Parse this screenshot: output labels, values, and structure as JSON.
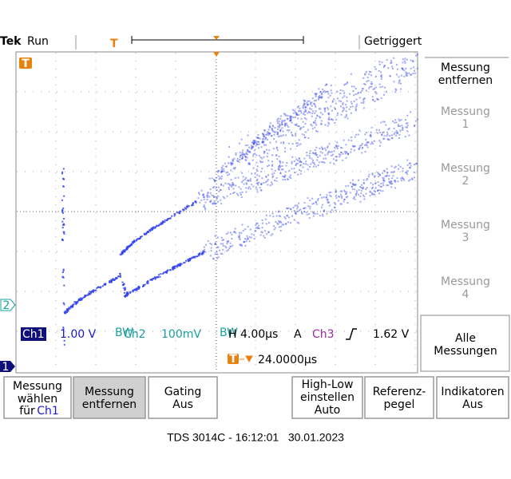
{
  "header": {
    "brand": "Tek",
    "state": "Run",
    "trigger_marker": "T",
    "trigger_status": "Getriggert"
  },
  "markers": {
    "trigger": "T",
    "ch2": "2",
    "ch1": "1"
  },
  "status": {
    "ch1": "Ch1",
    "ch1_scale": "1.00 V",
    "ch2": "Ch2",
    "ch2_scale": "100mV",
    "horizontal": "H 4.00µs",
    "mode": "A",
    "ch3": "Ch3",
    "trigger_level": "1.62 V",
    "delay_marker": "T",
    "delay": "24.0000µs"
  },
  "side_menu": [
    [
      "Messung",
      "entfernen"
    ],
    [
      "Messung",
      "1"
    ],
    [
      "Messung",
      "2"
    ],
    [
      "Messung",
      "3"
    ],
    [
      "Messung",
      "4"
    ],
    [
      "Alle",
      "Messungen"
    ]
  ],
  "bottom_menu": [
    [
      "Messung",
      "wählen",
      "für",
      "Ch1"
    ],
    [
      "Messung",
      "entfernen"
    ],
    [
      "Gating",
      "Aus"
    ],
    [
      "High-Low",
      "einstellen",
      "Auto"
    ],
    [
      "Referenz-",
      "pegel"
    ],
    [
      "Indikatoren",
      "Aus"
    ]
  ],
  "caption": "TDS 3014C - 16:12:01   30.01.2023"
}
